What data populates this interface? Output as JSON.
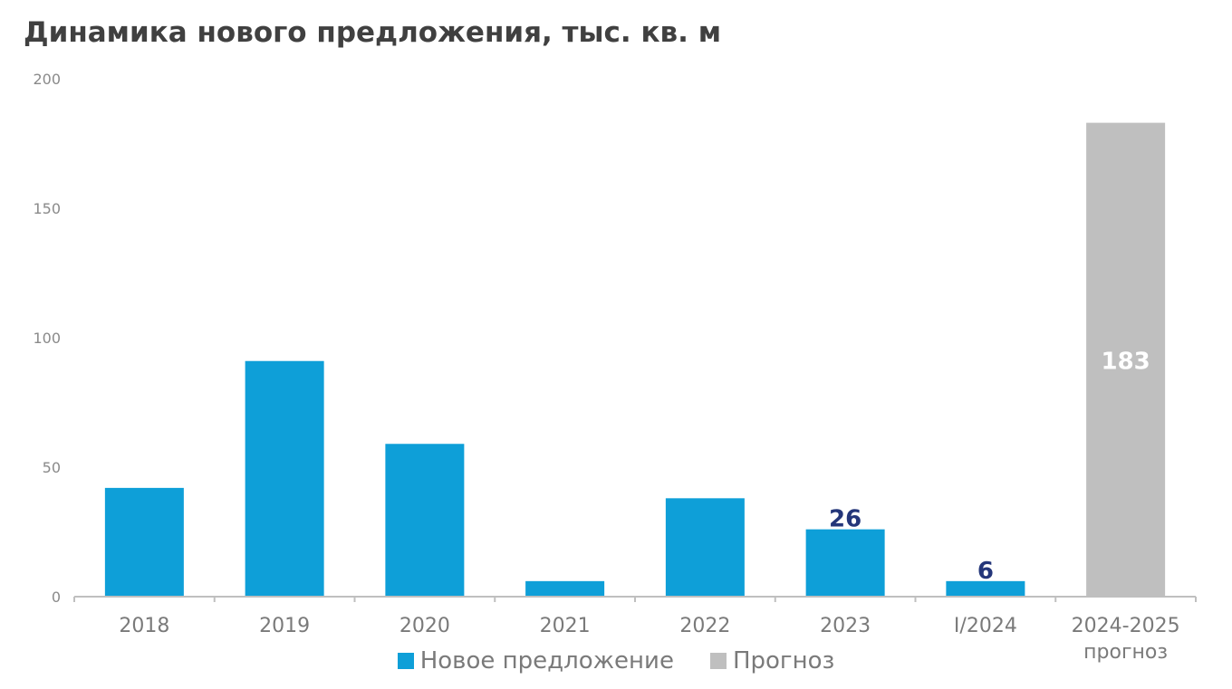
{
  "chart_data": {
    "type": "bar",
    "title": "Динамика нового предложения, тыс. кв. м",
    "xlabel": "",
    "ylabel": "",
    "ylim": [
      0,
      200
    ],
    "yticks": [
      0,
      50,
      100,
      150,
      200
    ],
    "grid": false,
    "legend_position": "bottom",
    "categories": [
      [
        "2018"
      ],
      [
        "2019"
      ],
      [
        "2020"
      ],
      [
        "2021"
      ],
      [
        "2022"
      ],
      [
        "2023"
      ],
      [
        "I/2024"
      ],
      [
        "2024-2025",
        "прогноз"
      ]
    ],
    "series": [
      {
        "name": "Новое предложение",
        "color": "#0e9fd8",
        "values": [
          42,
          91,
          59,
          6,
          38,
          26,
          6,
          null
        ],
        "data_labels": [
          null,
          null,
          null,
          null,
          null,
          "26",
          "6",
          null
        ]
      },
      {
        "name": "Прогноз",
        "color": "#bfbfbf",
        "values": [
          null,
          null,
          null,
          null,
          null,
          null,
          null,
          183
        ],
        "data_labels": [
          null,
          null,
          null,
          null,
          null,
          null,
          null,
          "183"
        ]
      }
    ],
    "label_color_dark": "#24367a",
    "label_color_light": "#ffffff",
    "axis_color": "#bfbfbf",
    "text_color": "#8a8a8a"
  }
}
